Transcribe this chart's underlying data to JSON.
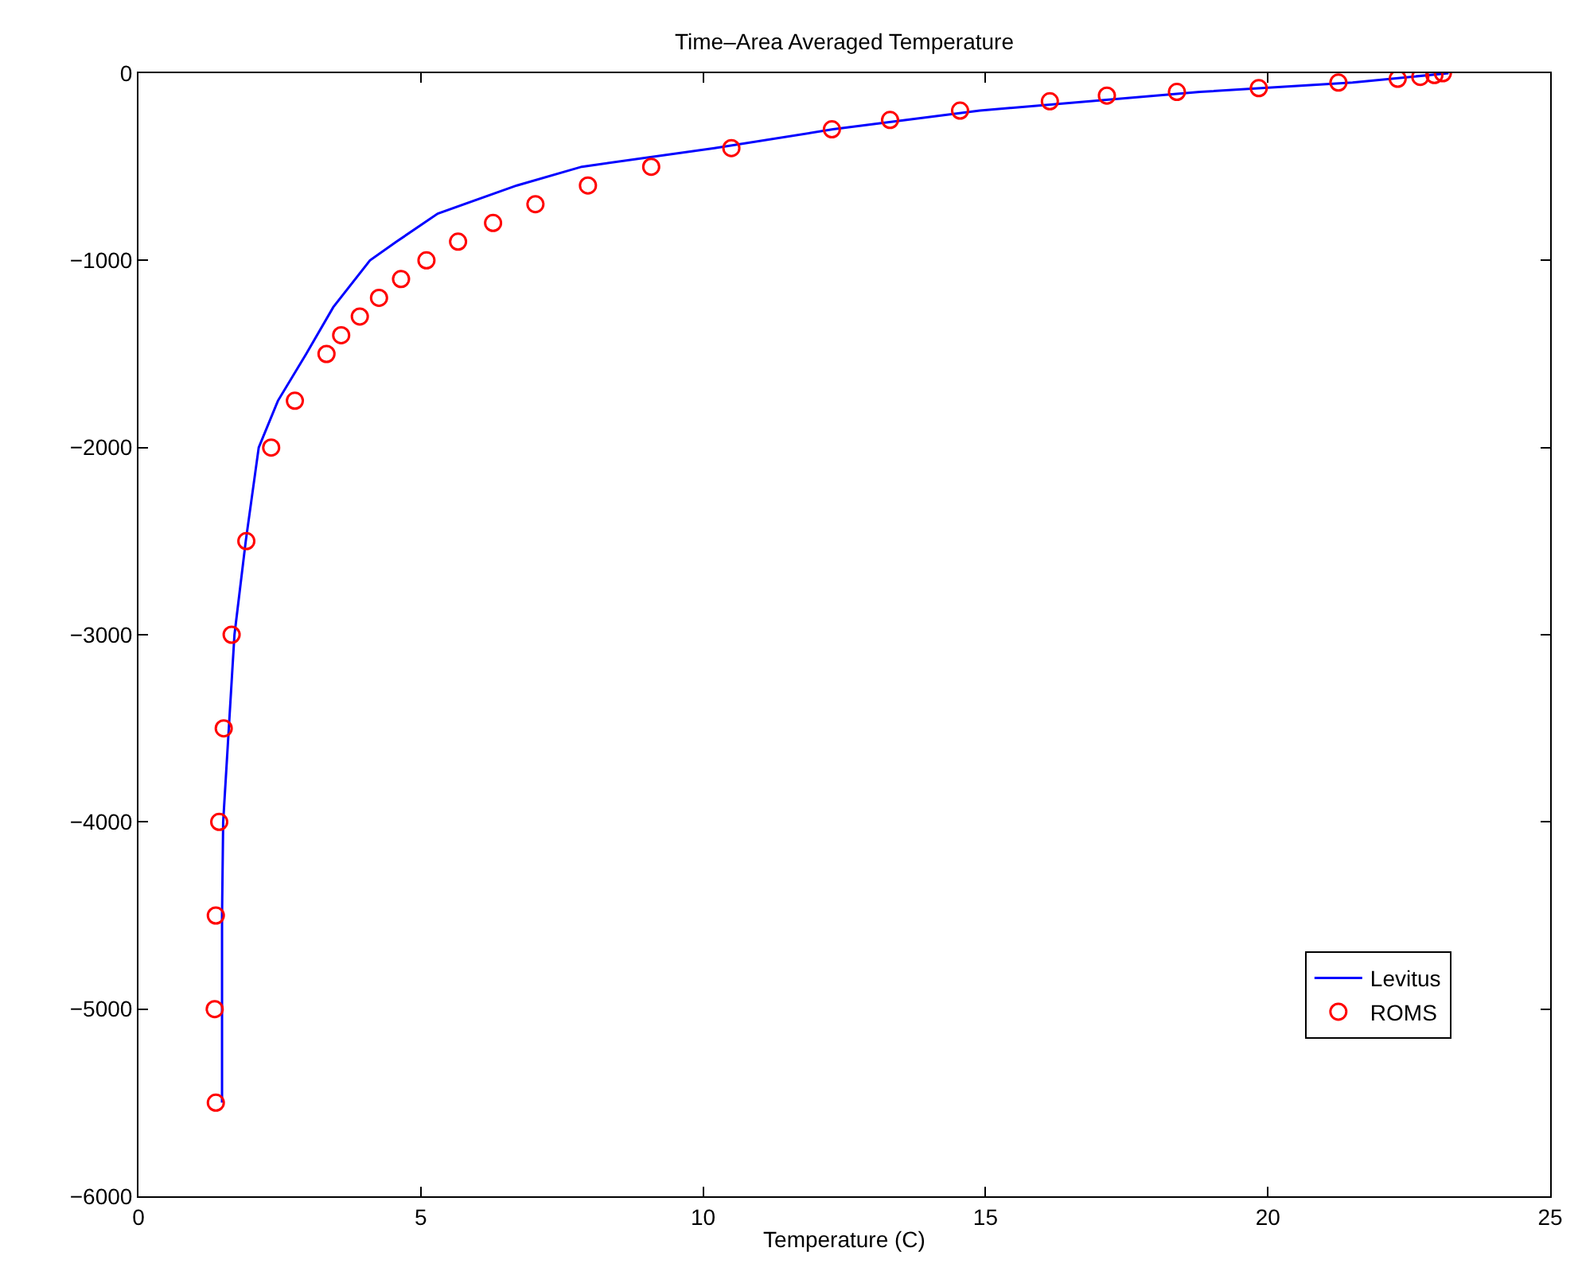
{
  "chart_data": {
    "type": "line",
    "title": "Time–Area Averaged Temperature",
    "xlabel": "Temperature (C)",
    "xlim": [
      0,
      25
    ],
    "xticks": [
      0,
      5,
      10,
      15,
      20,
      25
    ],
    "ylim": [
      -6000,
      0
    ],
    "yticks": [
      -6000,
      -5000,
      -4000,
      -3000,
      -2000,
      -1000,
      0
    ],
    "legend": "bottom right",
    "series": [
      {
        "name": "Levitus",
        "color": "#0000ff",
        "line_style": "solid",
        "marker": "none",
        "x": [
          1.48,
          1.48,
          1.48,
          1.5,
          1.6,
          1.7,
          1.9,
          2.13,
          2.47,
          2.97,
          3.45,
          4.1,
          4.57,
          5.3,
          6.7,
          7.85,
          10.2,
          12.3,
          14.9,
          18.8,
          21.5,
          23.2
        ],
        "values": [
          -5500,
          -5000,
          -4500,
          -4000,
          -3500,
          -3000,
          -2500,
          -2000,
          -1750,
          -1500,
          -1250,
          -1000,
          -900,
          -750,
          -600,
          -500,
          -400,
          -300,
          -200,
          -100,
          -50,
          0
        ]
      },
      {
        "name": "ROMS",
        "type": "scatter",
        "color": "#ff0000",
        "marker": "circle",
        "x": [
          1.37,
          1.35,
          1.37,
          1.43,
          1.51,
          1.65,
          1.91,
          2.35,
          2.77,
          3.33,
          3.59,
          3.92,
          4.26,
          4.65,
          5.1,
          5.66,
          6.28,
          7.03,
          7.96,
          9.08,
          10.5,
          12.28,
          13.31,
          14.55,
          16.14,
          17.15,
          18.39,
          19.84,
          21.25,
          22.3,
          22.7,
          22.95,
          23.1
        ],
        "values": [
          -5500,
          -5000,
          -4500,
          -4000,
          -3500,
          -3000,
          -2500,
          -2000,
          -1750,
          -1500,
          -1400,
          -1300,
          -1200,
          -1100,
          -1000,
          -900,
          -800,
          -700,
          -600,
          -500,
          -400,
          -300,
          -250,
          -200,
          -150,
          -120,
          -100,
          -80,
          -50,
          -30,
          -20,
          -10,
          0
        ]
      }
    ]
  }
}
